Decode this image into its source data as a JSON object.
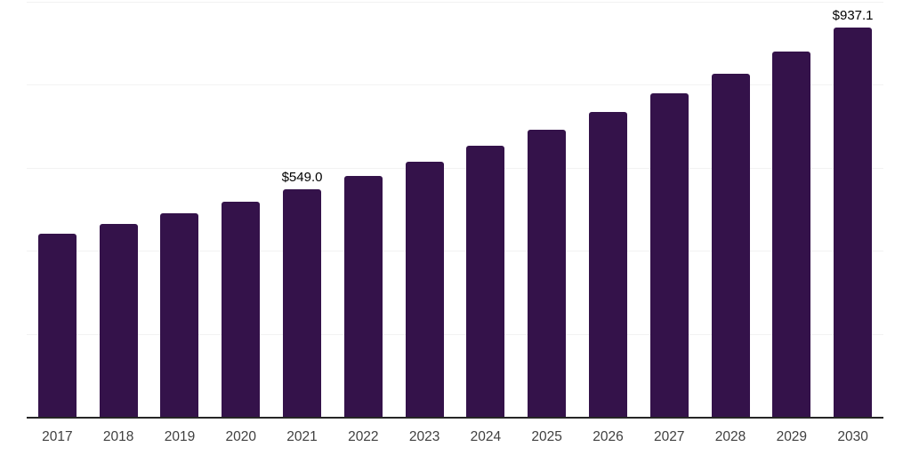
{
  "chart_data": {
    "type": "bar",
    "title": "",
    "xlabel": "",
    "ylabel": "",
    "categories": [
      "2017",
      "2018",
      "2019",
      "2020",
      "2021",
      "2022",
      "2023",
      "2024",
      "2025",
      "2026",
      "2027",
      "2028",
      "2029",
      "2030"
    ],
    "values": [
      441.9,
      464.7,
      489.5,
      517.5,
      549.0,
      580.4,
      613.5,
      652.2,
      691.0,
      733.5,
      778.3,
      826.8,
      880.2,
      937.1
    ],
    "data_labels": [
      {
        "category": "2021",
        "text": "$549.0"
      },
      {
        "category": "2030",
        "text": "$937.1"
      }
    ],
    "ylim": [
      0,
      1000
    ],
    "gridline_values": [
      200,
      400,
      600,
      800,
      1000
    ],
    "grid": true,
    "legend": "none"
  },
  "colors": {
    "bar": "#34124a",
    "gridline": "#f2f2f2",
    "axis_line": "#262626",
    "tick_label": "#404040",
    "data_label": "#000000",
    "background": "#ffffff"
  }
}
